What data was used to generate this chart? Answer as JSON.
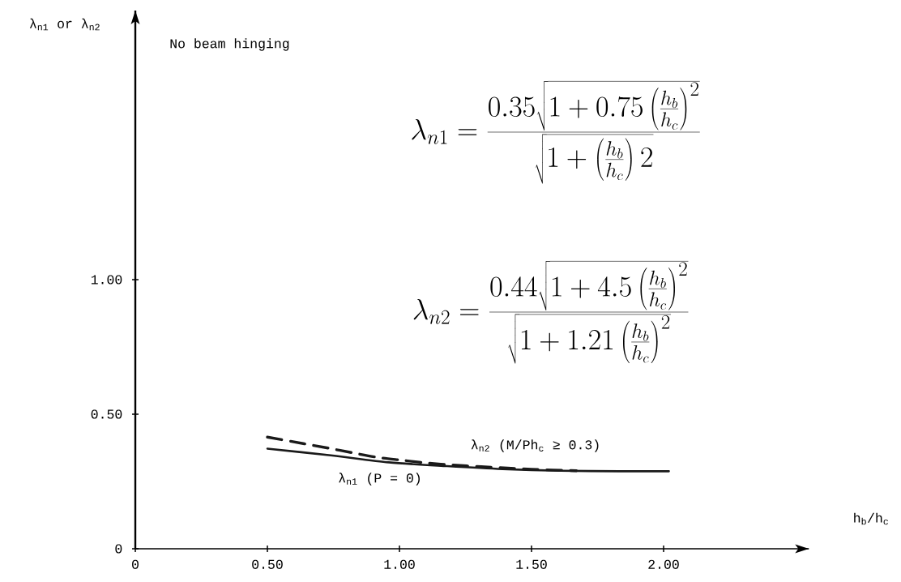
{
  "chart_data": {
    "type": "line",
    "xlabel": "h$_{b}$/h$_{c}$",
    "ylabel": "λ$_{n1}$ or λ$_{n2}$",
    "xlim": [
      0,
      2.55
    ],
    "ylim": [
      0,
      2.0
    ],
    "xticks": [
      0,
      {
        "value": 0.5,
        "label": "0.50"
      },
      {
        "value": 1,
        "label": "1.00"
      },
      {
        "value": 1.5,
        "label": "1.50"
      },
      {
        "value": 2,
        "label": "2.00"
      }
    ],
    "yticks": [
      0,
      {
        "value": 0.5,
        "label": "0.50"
      },
      {
        "value": 1,
        "label": "1.00"
      }
    ],
    "marker": "none",
    "series": [
      {
        "name": "λ$_{n2}$ (M/Ph$_{c}$ ≥ 0.3)",
        "color": "#1a1a1a",
        "line_style": "dashed",
        "x": [
          0.5,
          0.64,
          0.73,
          0.82,
          0.92,
          1.01,
          1.11,
          1.2,
          1.31,
          1.41,
          1.5,
          1.67
        ],
        "values": [
          0.415,
          0.39,
          0.374,
          0.357,
          0.339,
          0.329,
          0.318,
          0.311,
          0.305,
          0.3,
          0.295,
          0.29
        ]
      },
      {
        "name": "λ$_{n1}$ (P = 0)",
        "color": "#1a1a1a",
        "line_style": "solid",
        "x": [
          0.5,
          0.74,
          0.96,
          1.18,
          1.39,
          1.61,
          1.83,
          2.02
        ],
        "values": [
          0.372,
          0.347,
          0.321,
          0.307,
          0.296,
          0.29,
          0.288,
          0.288
        ]
      }
    ],
    "annotations": [
      "No beam hinging",
      "\\lambda_{n1} = \\frac{0.35\\sqrt{1+0.75\\left(\\frac{h_b}{h_c}\\right)^2}}{\\sqrt{1+\\left(\\frac{h_b}{h_c}\\right)2}}",
      "\\lambda_{n2} = \\frac{0.44\\sqrt{1+4.5\\left(\\frac{h_b}{h_c}\\right)^2}}{\\sqrt{1+1.21\\left(\\frac{h_b}{h_c}\\right)^2}}"
    ]
  }
}
